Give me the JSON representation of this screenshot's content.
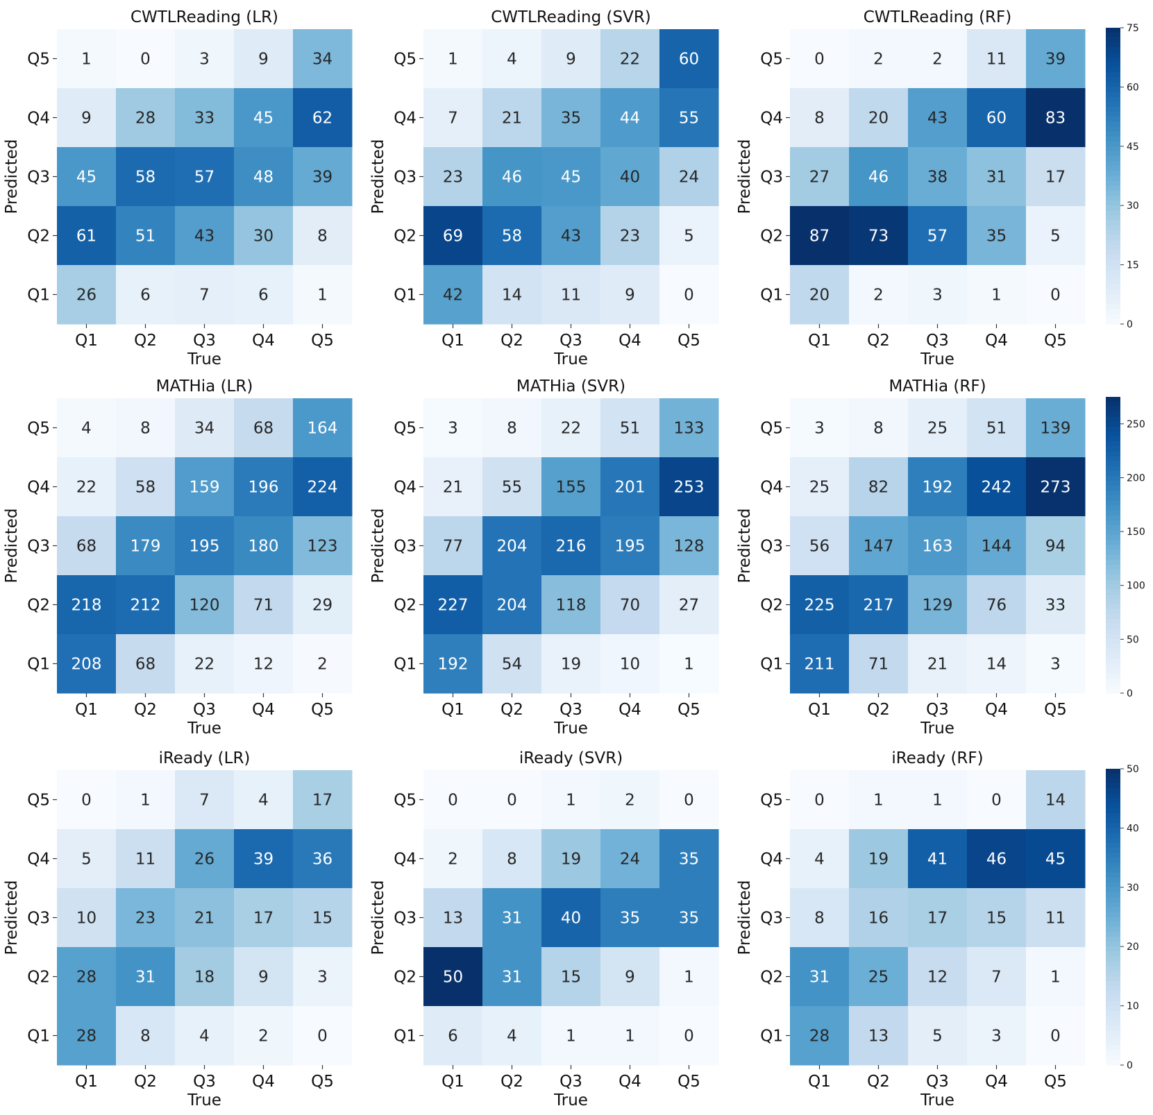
{
  "chart_data": [
    {
      "type": "heatmap",
      "title": "CWTLReading (LR)",
      "xlabel": "True",
      "ylabel": "Predicted",
      "x_categories": [
        "Q1",
        "Q2",
        "Q3",
        "Q4",
        "Q5"
      ],
      "y_categories": [
        "Q5",
        "Q4",
        "Q3",
        "Q2",
        "Q1"
      ],
      "values": [
        [
          1,
          0,
          3,
          9,
          34
        ],
        [
          9,
          28,
          33,
          45,
          62
        ],
        [
          45,
          58,
          57,
          48,
          39
        ],
        [
          61,
          51,
          43,
          30,
          8
        ],
        [
          26,
          6,
          7,
          6,
          1
        ]
      ]
    },
    {
      "type": "heatmap",
      "title": "CWTLReading (SVR)",
      "xlabel": "True",
      "ylabel": "Predicted",
      "x_categories": [
        "Q1",
        "Q2",
        "Q3",
        "Q4",
        "Q5"
      ],
      "y_categories": [
        "Q5",
        "Q4",
        "Q3",
        "Q2",
        "Q1"
      ],
      "values": [
        [
          1,
          4,
          9,
          22,
          60
        ],
        [
          7,
          21,
          35,
          44,
          55
        ],
        [
          23,
          46,
          45,
          40,
          24
        ],
        [
          69,
          58,
          43,
          23,
          5
        ],
        [
          42,
          14,
          11,
          9,
          0
        ]
      ]
    },
    {
      "type": "heatmap",
      "title": "CWTLReading (RF)",
      "xlabel": "True",
      "ylabel": "Predicted",
      "x_categories": [
        "Q1",
        "Q2",
        "Q3",
        "Q4",
        "Q5"
      ],
      "y_categories": [
        "Q5",
        "Q4",
        "Q3",
        "Q2",
        "Q1"
      ],
      "values": [
        [
          0,
          2,
          2,
          11,
          39
        ],
        [
          8,
          20,
          43,
          60,
          83
        ],
        [
          27,
          46,
          38,
          31,
          17
        ],
        [
          87,
          73,
          57,
          35,
          5
        ],
        [
          20,
          2,
          3,
          1,
          0
        ]
      ],
      "colorbar": {
        "range": [
          0,
          75
        ],
        "ticks": [
          "0",
          "15",
          "30",
          "45",
          "60",
          "75"
        ]
      }
    },
    {
      "type": "heatmap",
      "title": "MATHia (LR)",
      "xlabel": "True",
      "ylabel": "Predicted",
      "x_categories": [
        "Q1",
        "Q2",
        "Q3",
        "Q4",
        "Q5"
      ],
      "y_categories": [
        "Q5",
        "Q4",
        "Q3",
        "Q2",
        "Q1"
      ],
      "values": [
        [
          4,
          8,
          34,
          68,
          164
        ],
        [
          22,
          58,
          159,
          196,
          224
        ],
        [
          68,
          179,
          195,
          180,
          123
        ],
        [
          218,
          212,
          120,
          71,
          29
        ],
        [
          208,
          68,
          22,
          12,
          2
        ]
      ]
    },
    {
      "type": "heatmap",
      "title": "MATHia (SVR)",
      "xlabel": "True",
      "ylabel": "Predicted",
      "x_categories": [
        "Q1",
        "Q2",
        "Q3",
        "Q4",
        "Q5"
      ],
      "y_categories": [
        "Q5",
        "Q4",
        "Q3",
        "Q2",
        "Q1"
      ],
      "values": [
        [
          3,
          8,
          22,
          51,
          133
        ],
        [
          21,
          55,
          155,
          201,
          253
        ],
        [
          77,
          204,
          216,
          195,
          128
        ],
        [
          227,
          204,
          118,
          70,
          27
        ],
        [
          192,
          54,
          19,
          10,
          1
        ]
      ]
    },
    {
      "type": "heatmap",
      "title": "MATHia (RF)",
      "xlabel": "True",
      "ylabel": "Predicted",
      "x_categories": [
        "Q1",
        "Q2",
        "Q3",
        "Q4",
        "Q5"
      ],
      "y_categories": [
        "Q5",
        "Q4",
        "Q3",
        "Q2",
        "Q1"
      ],
      "values": [
        [
          3,
          8,
          25,
          51,
          139
        ],
        [
          25,
          82,
          192,
          242,
          273
        ],
        [
          56,
          147,
          163,
          144,
          94
        ],
        [
          225,
          217,
          129,
          76,
          33
        ],
        [
          211,
          71,
          21,
          14,
          3
        ]
      ],
      "colorbar": {
        "range": [
          0,
          275
        ],
        "ticks": [
          "0",
          "50",
          "100",
          "150",
          "200",
          "250"
        ]
      }
    },
    {
      "type": "heatmap",
      "title": "iReady (LR)",
      "xlabel": "True",
      "ylabel": "Predicted",
      "x_categories": [
        "Q1",
        "Q2",
        "Q3",
        "Q4",
        "Q5"
      ],
      "y_categories": [
        "Q5",
        "Q4",
        "Q3",
        "Q2",
        "Q1"
      ],
      "values": [
        [
          0,
          1,
          7,
          4,
          17
        ],
        [
          5,
          11,
          26,
          39,
          36
        ],
        [
          10,
          23,
          21,
          17,
          15
        ],
        [
          28,
          31,
          18,
          9,
          3
        ],
        [
          28,
          8,
          4,
          2,
          0
        ]
      ]
    },
    {
      "type": "heatmap",
      "title": "iReady (SVR)",
      "xlabel": "True",
      "ylabel": "Predicted",
      "x_categories": [
        "Q1",
        "Q2",
        "Q3",
        "Q4",
        "Q5"
      ],
      "y_categories": [
        "Q5",
        "Q4",
        "Q3",
        "Q2",
        "Q1"
      ],
      "values": [
        [
          0,
          0,
          1,
          2,
          0
        ],
        [
          2,
          8,
          19,
          24,
          35
        ],
        [
          13,
          31,
          40,
          35,
          35
        ],
        [
          50,
          31,
          15,
          9,
          1
        ],
        [
          6,
          4,
          1,
          1,
          0
        ]
      ]
    },
    {
      "type": "heatmap",
      "title": "iReady (RF)",
      "xlabel": "True",
      "ylabel": "Predicted",
      "x_categories": [
        "Q1",
        "Q2",
        "Q3",
        "Q4",
        "Q5"
      ],
      "y_categories": [
        "Q5",
        "Q4",
        "Q3",
        "Q2",
        "Q1"
      ],
      "values": [
        [
          0,
          1,
          1,
          0,
          14
        ],
        [
          4,
          19,
          41,
          46,
          45
        ],
        [
          8,
          16,
          17,
          15,
          11
        ],
        [
          31,
          25,
          12,
          7,
          1
        ],
        [
          28,
          13,
          5,
          3,
          0
        ]
      ],
      "colorbar": {
        "range": [
          0,
          50
        ],
        "ticks": [
          "0",
          "10",
          "20",
          "30",
          "40",
          "50"
        ]
      }
    }
  ]
}
